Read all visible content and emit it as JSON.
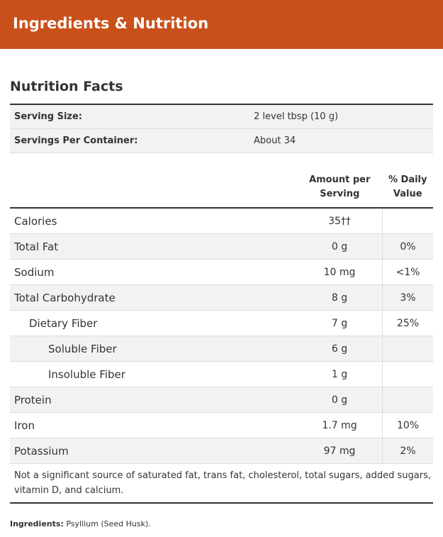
{
  "header": {
    "title": "Ingredients & Nutrition"
  },
  "nutrition": {
    "title": "Nutrition Facts",
    "serving": [
      [
        "Serving Size:",
        "2 level tbsp (10 g)"
      ],
      [
        "Servings Per Container:",
        "About 34"
      ]
    ],
    "columns": [
      "Amount per Serving",
      "% Daily Value"
    ],
    "rows": [
      [
        "Calories",
        "35††"
      ],
      [
        "Total Fat",
        "0 g",
        "0%"
      ],
      [
        "Sodium",
        "10 mg",
        "<1%"
      ],
      [
        "Total Carbohydrate",
        "8 g",
        "3%"
      ],
      [
        "Dietary Fiber",
        "7 g",
        "25%"
      ],
      [
        "Soluble Fiber",
        "6 g"
      ],
      [
        "Insoluble Fiber",
        "1 g"
      ],
      [
        "Protein",
        "0 g"
      ],
      [
        "Iron",
        "1.7 mg",
        "10%"
      ],
      [
        "Potassium",
        "97 mg",
        "2%"
      ]
    ],
    "footnote": "Not a significant source of saturated fat, trans fat, cholesterol, total sugars, added sugars, vitamin D, and calcium."
  },
  "ingredients": {
    "label": "Ingredients:",
    "text": "Psyllium (Seed Husk)."
  }
}
